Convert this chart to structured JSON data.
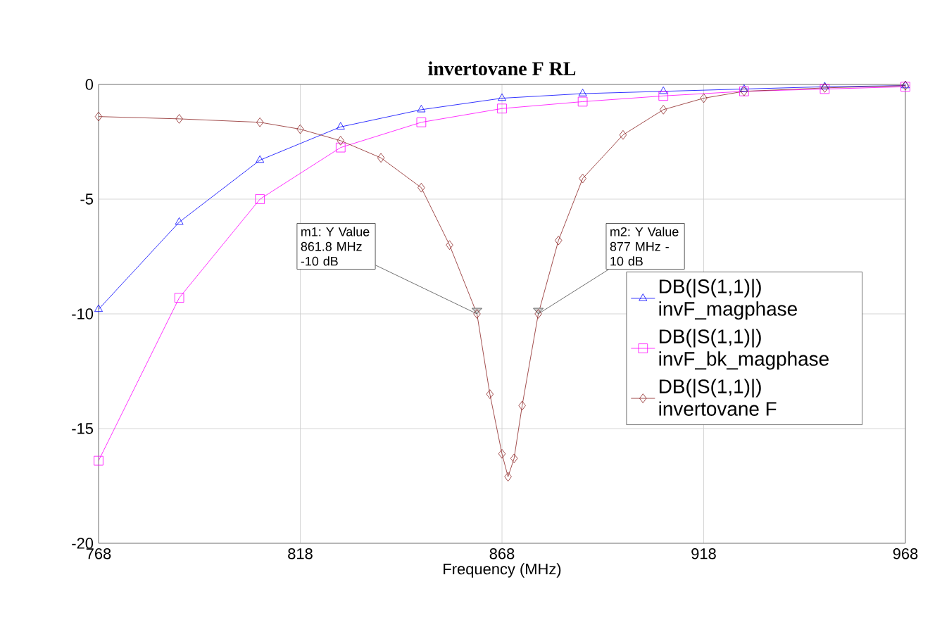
{
  "chart_data": {
    "type": "line",
    "title": "invertovane F RL",
    "xlabel": "Frequency (MHz)",
    "xlim": [
      768,
      968
    ],
    "ylim": [
      -20,
      0
    ],
    "xticks": [
      768,
      818,
      868,
      918,
      968
    ],
    "yticks": [
      -20,
      -15,
      -10,
      -5,
      0
    ],
    "grid": true,
    "legend": "right",
    "line_style": "solid",
    "series": [
      {
        "name": "DB(|S(1,1)|) invF_magphase",
        "color": "#0000ff",
        "marker": "triangle",
        "x": [
          768,
          788,
          808,
          828,
          848,
          868,
          888,
          908,
          928,
          948,
          968
        ],
        "values": [
          -9.8,
          -6.0,
          -3.3,
          -1.85,
          -1.1,
          -0.6,
          -0.4,
          -0.3,
          -0.2,
          -0.1,
          -0.05
        ]
      },
      {
        "name": "DB(|S(1,1)|) invF_bk_magphase",
        "color": "#ff00ff",
        "marker": "square",
        "x": [
          768,
          788,
          808,
          828,
          848,
          868,
          888,
          908,
          928,
          948,
          968
        ],
        "values": [
          -16.4,
          -9.3,
          -5.0,
          -2.75,
          -1.65,
          -1.05,
          -0.75,
          -0.5,
          -0.3,
          -0.2,
          -0.1
        ]
      },
      {
        "name": "DB(|S(1,1)|) invertovane F",
        "color": "#8b2323",
        "marker": "diamond",
        "x": [
          768,
          788,
          808,
          818,
          828,
          838,
          848,
          855,
          861.8,
          865,
          868,
          869.5,
          871,
          873,
          877,
          882,
          888,
          898,
          908,
          918,
          928,
          948,
          968
        ],
        "values": [
          -1.4,
          -1.5,
          -1.65,
          -1.95,
          -2.45,
          -3.2,
          -4.5,
          -7,
          -10,
          -13.5,
          -16.1,
          -17.1,
          -16.3,
          -14,
          -10,
          -6.8,
          -4.1,
          -2.2,
          -1.1,
          -0.6,
          -0.3,
          -0.15,
          -0.05
        ]
      }
    ],
    "annotations": [
      {
        "text": "m1: Y Value 861.8 MHz -10 dB",
        "x": 861.8,
        "y": -10
      },
      {
        "text": "m2: Y Value 877 MHz -10 dB",
        "x": 877,
        "y": -10
      }
    ]
  }
}
